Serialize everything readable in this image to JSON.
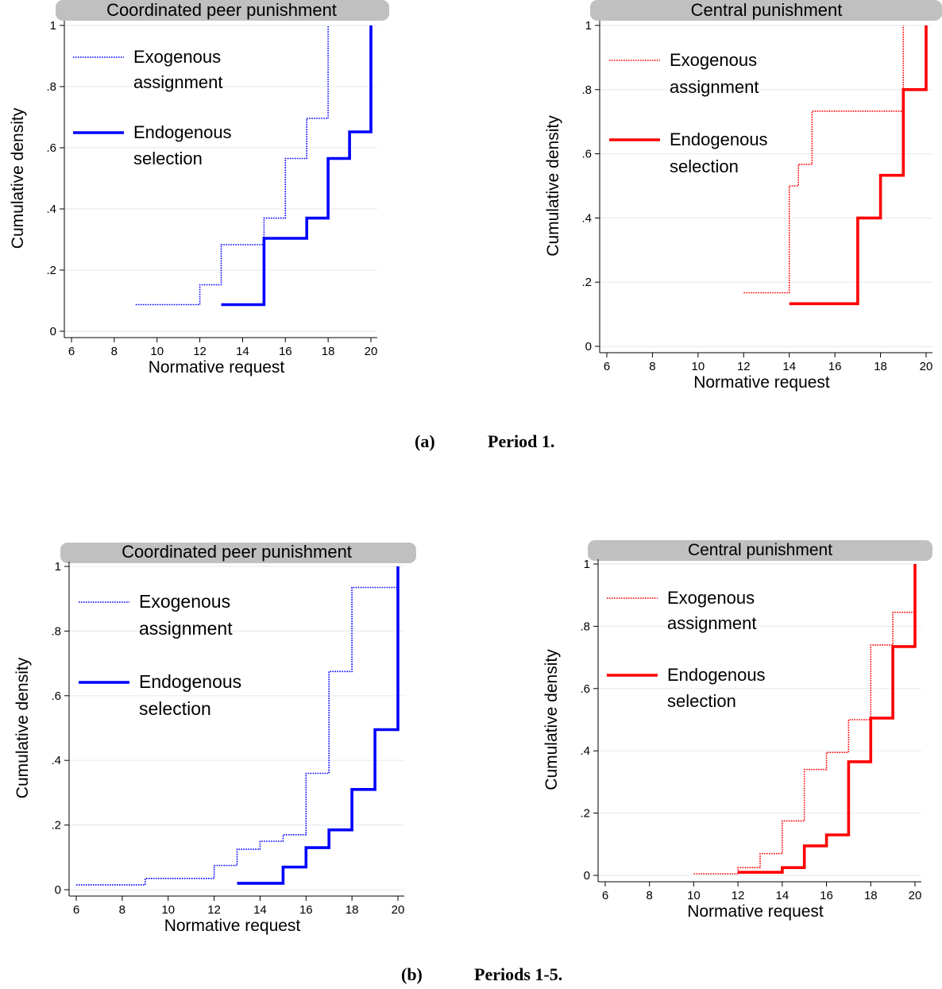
{
  "captions": [
    {
      "letter": "(a)",
      "text": "Period 1."
    },
    {
      "letter": "(b)",
      "text": "Periods 1-5."
    }
  ],
  "colors": {
    "peer": "#0000ff",
    "central": "#ff0000",
    "title_band": "#c0c0c0",
    "grid": "#e6ecef"
  },
  "chart_data": [
    {
      "type": "line",
      "title": "Coordinated peer punishment",
      "xlabel": "Normative request",
      "ylabel": "Cumulative density",
      "xlim": [
        6,
        20
      ],
      "ylim": [
        0,
        1
      ],
      "xticks": [
        "6",
        "8",
        "10",
        "12",
        "14",
        "16",
        "18",
        "20"
      ],
      "yticks": [
        "0",
        ".2",
        ".4",
        ".6",
        ".8",
        "1"
      ],
      "legend_position": "top-left",
      "series": [
        {
          "name": "Exogenous assignment",
          "style": "dotted",
          "x": [
            9,
            12,
            13,
            15,
            16,
            17,
            18,
            18
          ],
          "y": [
            0.087,
            0.152,
            0.283,
            0.37,
            0.565,
            0.696,
            1.0,
            1.0
          ]
        },
        {
          "name": "Endogenous selection",
          "style": "solid",
          "x": [
            13,
            15,
            17,
            18,
            19,
            20,
            20
          ],
          "y": [
            0.087,
            0.304,
            0.37,
            0.565,
            0.652,
            1.0,
            1.0
          ]
        }
      ]
    },
    {
      "type": "line",
      "title": "Central punishment",
      "xlabel": "Normative request",
      "ylabel": "Cumulative density",
      "xlim": [
        6,
        20
      ],
      "ylim": [
        0,
        1
      ],
      "xticks": [
        "6",
        "8",
        "10",
        "12",
        "14",
        "16",
        "18",
        "20"
      ],
      "yticks": [
        "0",
        ".2",
        ".4",
        ".6",
        ".8",
        "1"
      ],
      "legend_position": "top-left",
      "series": [
        {
          "name": "Exogenous assignment",
          "style": "dotted",
          "x": [
            12,
            14,
            14.4,
            15,
            19,
            19
          ],
          "y": [
            0.167,
            0.5,
            0.567,
            0.733,
            1.0,
            1.0
          ]
        },
        {
          "name": "Endogenous selection",
          "style": "solid",
          "x": [
            14,
            17,
            18,
            19,
            20,
            20
          ],
          "y": [
            0.133,
            0.4,
            0.533,
            0.8,
            1.0,
            1.0
          ]
        }
      ]
    },
    {
      "type": "line",
      "title": "Coordinated peer punishment",
      "xlabel": "Normative request",
      "ylabel": "Cumulative density",
      "xlim": [
        6,
        20
      ],
      "ylim": [
        0,
        1
      ],
      "xticks": [
        "6",
        "8",
        "10",
        "12",
        "14",
        "16",
        "18",
        "20"
      ],
      "yticks": [
        "0",
        ".2",
        ".4",
        ".6",
        ".8",
        "1"
      ],
      "legend_position": "top-left",
      "series": [
        {
          "name": "Exogenous assignment",
          "style": "dotted",
          "x": [
            6,
            9,
            12,
            13,
            14,
            15,
            16,
            17,
            18,
            20
          ],
          "y": [
            0.015,
            0.035,
            0.075,
            0.125,
            0.15,
            0.17,
            0.36,
            0.675,
            0.935,
            1.0
          ]
        },
        {
          "name": "Endogenous selection",
          "style": "solid",
          "x": [
            13,
            15,
            16,
            17,
            18,
            19,
            20,
            20
          ],
          "y": [
            0.02,
            0.07,
            0.13,
            0.185,
            0.31,
            0.495,
            1.0,
            1.0
          ]
        }
      ]
    },
    {
      "type": "line",
      "title": "Central punishment",
      "xlabel": "Normative request",
      "ylabel": "Cumulative density",
      "xlim": [
        6,
        20
      ],
      "ylim": [
        0,
        1
      ],
      "xticks": [
        "6",
        "8",
        "10",
        "12",
        "14",
        "16",
        "18",
        "20"
      ],
      "yticks": [
        "0",
        ".2",
        ".4",
        ".6",
        ".8",
        "1"
      ],
      "legend_position": "top-left",
      "series": [
        {
          "name": "Exogenous assignment",
          "style": "dotted",
          "x": [
            10,
            12,
            13,
            14,
            15,
            16,
            17,
            18,
            19,
            20
          ],
          "y": [
            0.005,
            0.025,
            0.07,
            0.175,
            0.34,
            0.395,
            0.5,
            0.74,
            0.845,
            1.0
          ]
        },
        {
          "name": "Endogenous selection",
          "style": "solid",
          "x": [
            12,
            14,
            15,
            16,
            17,
            18,
            19,
            20,
            20
          ],
          "y": [
            0.01,
            0.025,
            0.095,
            0.13,
            0.365,
            0.505,
            0.735,
            1.0,
            1.0
          ]
        }
      ]
    }
  ]
}
